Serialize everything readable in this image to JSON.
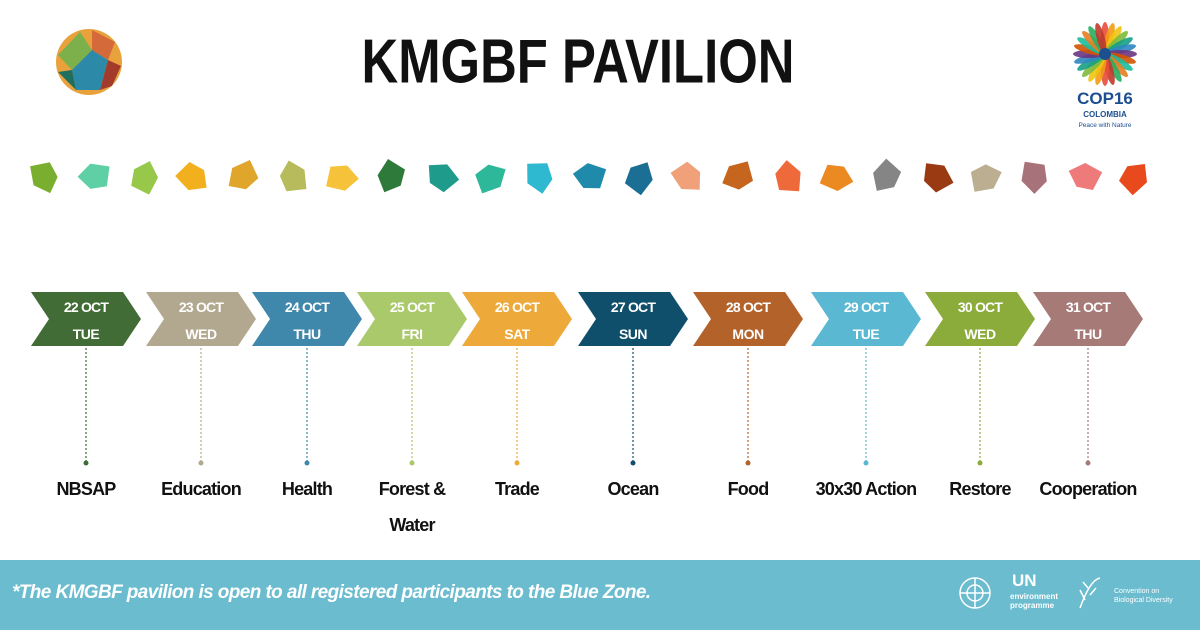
{
  "header": {
    "title": "KMGBF PAVILION"
  },
  "cop_logo": {
    "name": "COP16",
    "country": "COLOMBIA",
    "tagline": "Peace with Nature"
  },
  "days": [
    {
      "date": "22 OCT",
      "weekday": "TUE",
      "theme": "NBSAP",
      "color": "#416c35"
    },
    {
      "date": "23 OCT",
      "weekday": "WED",
      "theme": "Education",
      "color": "#b2a88f"
    },
    {
      "date": "24 OCT",
      "weekday": "THU",
      "theme": "Health",
      "color": "#3f88ab"
    },
    {
      "date": "25 OCT",
      "weekday": "FRI",
      "theme": "Forest & Water",
      "color": "#a9c96a"
    },
    {
      "date": "26 OCT",
      "weekday": "SAT",
      "theme": "Trade",
      "color": "#eda93a"
    },
    {
      "date": "27 OCT",
      "weekday": "SUN",
      "theme": "Ocean",
      "color": "#0f4f6b"
    },
    {
      "date": "28 OCT",
      "weekday": "MON",
      "theme": "Food",
      "color": "#b3622a"
    },
    {
      "date": "29 OCT",
      "weekday": "TUE",
      "theme": "30x30 Action",
      "color": "#5bb8d3"
    },
    {
      "date": "30 OCT",
      "weekday": "WED",
      "theme": "Restore",
      "color": "#8bab3b"
    },
    {
      "date": "31 OCT",
      "weekday": "THU",
      "theme": "Cooperation",
      "color": "#a57a77"
    }
  ],
  "footer": {
    "note": "*The KMGBF pavilion is open to all registered participants to the Blue Zone.",
    "unep_short": "UN",
    "unep_name": "environment programme",
    "cbd_name": "Convention on Biological Diversity"
  }
}
